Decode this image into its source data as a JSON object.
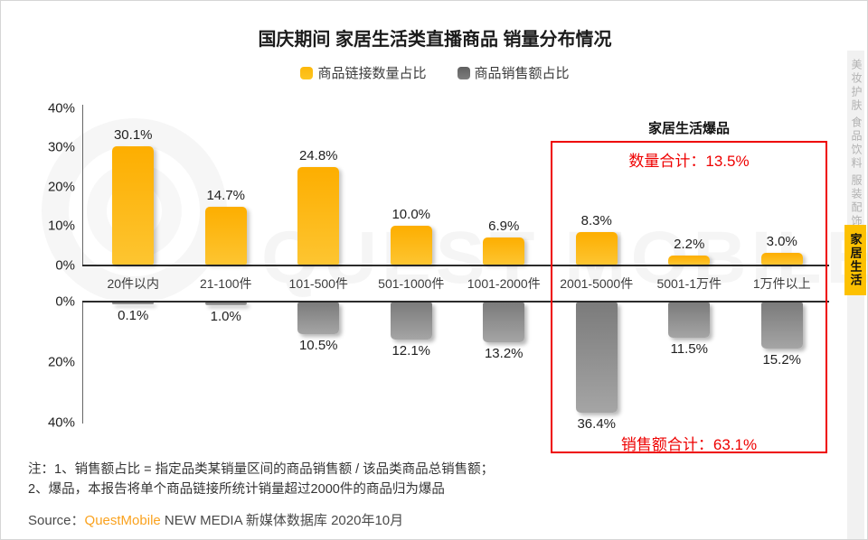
{
  "title": "国庆期间 家居生活类直播商品 销量分布情况",
  "legend": {
    "quantity_label": "商品链接数量占比",
    "sales_label": "商品销售额占比",
    "quantity_color": "#FDC101",
    "sales_color": "#6E6E6E"
  },
  "chart_data": {
    "type": "bar",
    "categories": [
      "20件以内",
      "21-100件",
      "101-500件",
      "501-1000件",
      "1001-2000件",
      "2001-5000件",
      "5001-1万件",
      "1万件以上"
    ],
    "series": [
      {
        "name": "商品链接数量占比",
        "values": [
          30.1,
          14.7,
          24.8,
          10.0,
          6.9,
          8.3,
          2.2,
          3.0
        ],
        "color": "#FDC101",
        "direction": "up"
      },
      {
        "name": "商品销售额占比",
        "values": [
          0.1,
          1.0,
          10.5,
          12.1,
          13.2,
          36.4,
          11.5,
          15.2
        ],
        "color": "#8A8A8A",
        "direction": "down"
      }
    ],
    "top_axis": {
      "ticks": [
        "40%",
        "30%",
        "20%",
        "10%",
        "0%"
      ],
      "max": 40
    },
    "bottom_axis": {
      "ticks": [
        "0%",
        "20%",
        "40%"
      ],
      "max": 40
    },
    "highlight": {
      "title": "家居生活爆品",
      "quantity_total": "数量合计：13.5%",
      "sales_total": "销售额合计：63.1%",
      "categories": [
        "2001-5000件",
        "5001-1万件",
        "1万件以上"
      ],
      "border_color": "#EE0000"
    }
  },
  "notes": {
    "line1": "注：1、销售额占比 = 指定品类某销量区间的商品销售额 / 该品类商品总销售额；",
    "line2": "2、爆品，本报告将单个商品链接所统计销量超过2000件的商品归为爆品"
  },
  "source": {
    "prefix": "Source：",
    "brand": "QuestMobile",
    "suffix": "NEW MEDIA 新媒体数据库 2020年10月",
    "brand_color": "#FAA21E"
  },
  "sidebar": {
    "items": [
      {
        "label": "美妆护肤",
        "active": false
      },
      {
        "label": "食品饮料",
        "active": false
      },
      {
        "label": "服装配饰",
        "active": false
      },
      {
        "label": "家居生活",
        "active": true
      }
    ]
  },
  "watermark": {
    "text": "QUEST MOBILE"
  }
}
